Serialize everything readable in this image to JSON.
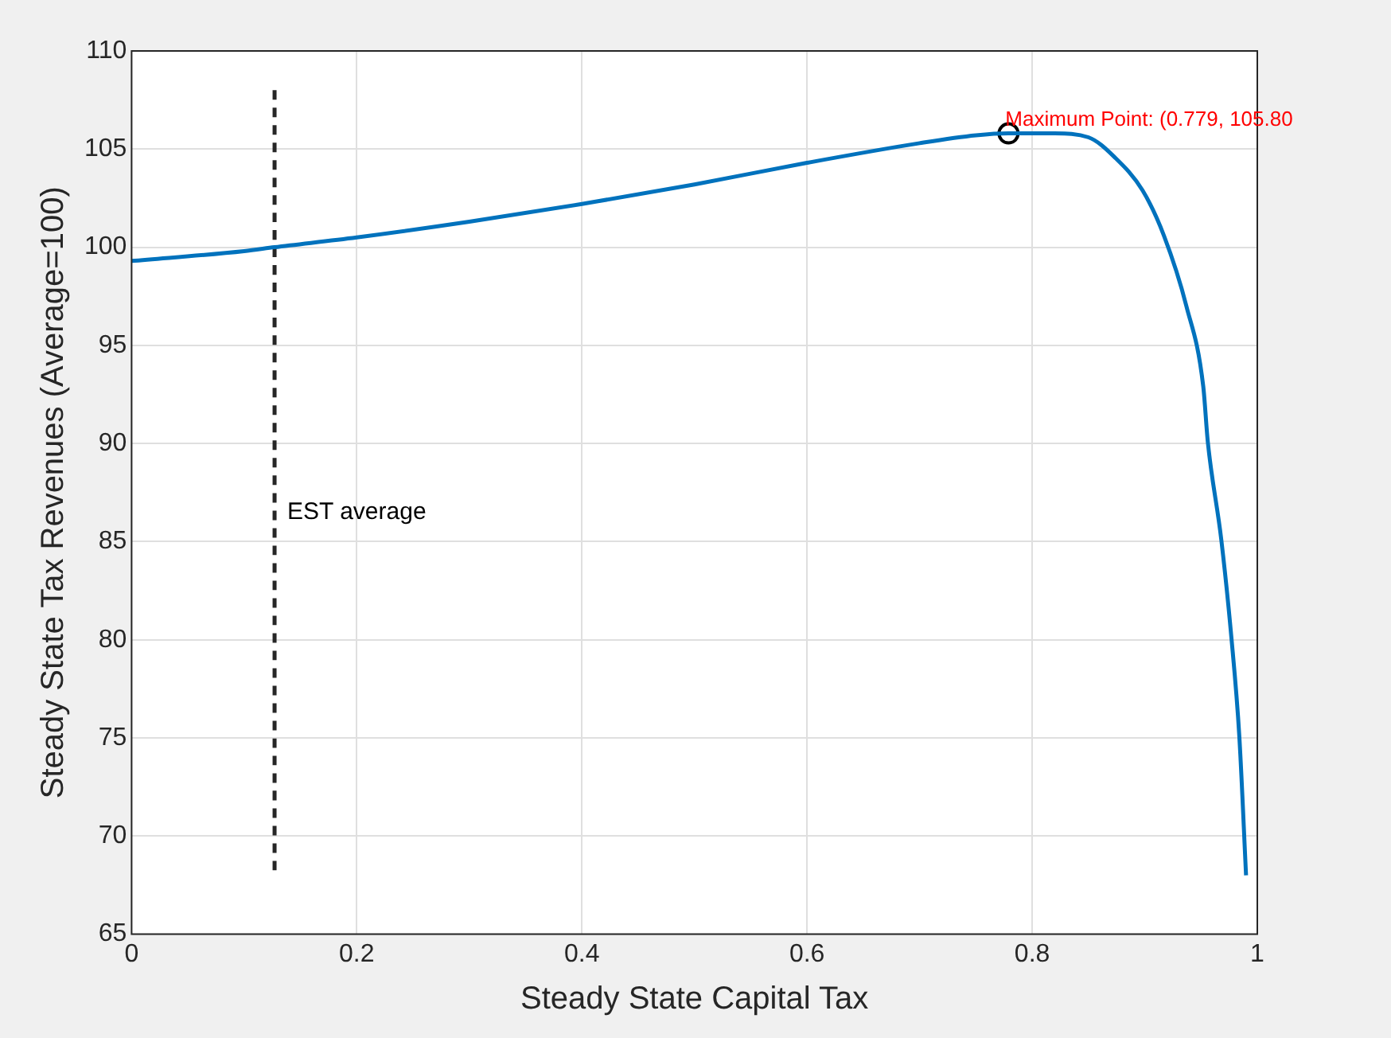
{
  "chart_data": {
    "type": "line",
    "xlabel": "Steady State Capital Tax",
    "ylabel": "Steady State Tax Revenues (Average=100)",
    "xlim": [
      0,
      1
    ],
    "xticks": [
      0,
      0.2,
      0.4,
      0.6,
      0.8,
      1
    ],
    "ylim": [
      65,
      110
    ],
    "yticks": [
      65,
      70,
      75,
      80,
      85,
      90,
      95,
      100,
      105,
      110
    ],
    "grid": true,
    "legend": false,
    "series": [
      {
        "color": "#0072bd",
        "marker": "none",
        "line_style": "solid",
        "x": [
          0,
          0.1,
          0.127,
          0.2,
          0.3,
          0.4,
          0.5,
          0.6,
          0.7,
          0.75,
          0.779,
          0.82,
          0.85,
          0.873,
          0.898,
          0.917,
          0.937,
          0.952,
          0.956,
          0.968,
          0.977,
          0.984,
          0.99
        ],
        "values": [
          99.3,
          99.8,
          100,
          100.5,
          101.3,
          102.2,
          103.2,
          104.3,
          105.3,
          105.7,
          105.8,
          105.8,
          105.6,
          104.6,
          102.9,
          100.6,
          97.0,
          92.9,
          90.1,
          85.1,
          80.1,
          75.1,
          68
        ]
      },
      {
        "type": "line",
        "color": "#262626",
        "marker": "none",
        "line_style": "dashed",
        "x": [
          0.127,
          0.127
        ],
        "values": [
          108,
          68
        ]
      },
      {
        "type": "scatter",
        "color": "#000000",
        "marker": "circle",
        "x": [
          0.779
        ],
        "values": [
          105.8
        ]
      }
    ],
    "annotations": [
      {
        "text": "EST average",
        "x": 0.127,
        "y": 86.5
      },
      {
        "text": "Maximum Point: (0.779, 105.80",
        "x": 0.779,
        "y": 105.8
      }
    ]
  }
}
